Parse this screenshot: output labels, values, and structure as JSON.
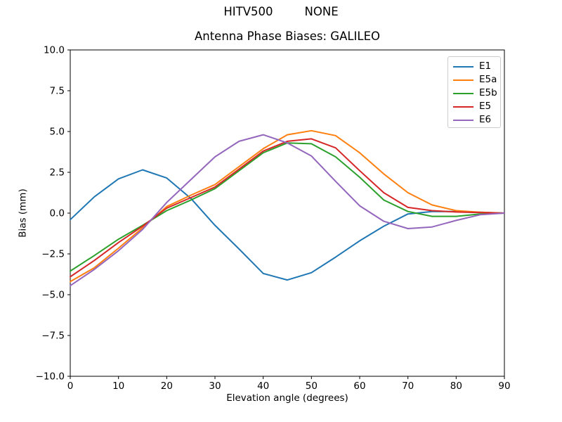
{
  "figure": {
    "suptitle_left": "HITV500",
    "suptitle_right": "NONE",
    "background_color": "#ffffff",
    "text_color": "#000000",
    "spine_color": "#000000",
    "legend_border_color": "#cccccc"
  },
  "chart_data": {
    "type": "line",
    "title": "Antenna Phase Biases: GALILEO",
    "xlabel": "Elevation angle (degrees)",
    "ylabel": "Bias (mm)",
    "xlim": [
      0,
      90
    ],
    "ylim": [
      -10,
      10
    ],
    "grid": false,
    "legend": {
      "position": "upper right",
      "entries": [
        "E1",
        "E5a",
        "E5b",
        "E5",
        "E6"
      ]
    },
    "xticks": {
      "values": [
        0,
        10,
        20,
        30,
        40,
        50,
        60,
        70,
        80,
        90
      ],
      "labels": [
        "0",
        "10",
        "20",
        "30",
        "40",
        "50",
        "60",
        "70",
        "80",
        "90"
      ]
    },
    "yticks": {
      "values": [
        -10,
        -7.5,
        -5,
        -2.5,
        0,
        2.5,
        5,
        7.5,
        10
      ],
      "labels": [
        "−10.0",
        "−7.5",
        "−5.0",
        "−2.5",
        "0.0",
        "2.5",
        "5.0",
        "7.5",
        "10.0"
      ]
    },
    "x": [
      0,
      5,
      10,
      15,
      20,
      25,
      30,
      35,
      40,
      45,
      50,
      55,
      60,
      65,
      70,
      75,
      80,
      85,
      90
    ],
    "series": [
      {
        "name": "E1",
        "color": "#1f77b4",
        "values": [
          -0.4,
          1.0,
          2.1,
          2.65,
          2.15,
          0.9,
          -0.75,
          -2.2,
          -3.7,
          -4.1,
          -3.65,
          -2.7,
          -1.7,
          -0.8,
          -0.05,
          0.1,
          0.1,
          0.05,
          0.0
        ]
      },
      {
        "name": "E5a",
        "color": "#ff7f0e",
        "values": [
          -4.2,
          -3.35,
          -2.15,
          -0.9,
          0.4,
          1.1,
          1.75,
          2.85,
          3.95,
          4.8,
          5.05,
          4.75,
          3.7,
          2.4,
          1.25,
          0.5,
          0.15,
          0.05,
          0.0
        ]
      },
      {
        "name": "E5b",
        "color": "#2ca02c",
        "values": [
          -3.55,
          -2.6,
          -1.6,
          -0.75,
          0.15,
          0.8,
          1.5,
          2.6,
          3.7,
          4.3,
          4.25,
          3.45,
          2.2,
          0.8,
          0.1,
          -0.2,
          -0.2,
          -0.05,
          0.0
        ]
      },
      {
        "name": "E5",
        "color": "#d62728",
        "values": [
          -3.9,
          -2.9,
          -1.8,
          -0.8,
          0.3,
          0.95,
          1.6,
          2.7,
          3.8,
          4.4,
          4.55,
          4.0,
          2.6,
          1.25,
          0.35,
          0.15,
          0.07,
          0.03,
          0.0
        ]
      },
      {
        "name": "E6",
        "color": "#9467bd",
        "values": [
          -4.45,
          -3.45,
          -2.3,
          -1.0,
          0.65,
          2.05,
          3.45,
          4.4,
          4.8,
          4.3,
          3.5,
          1.95,
          0.45,
          -0.5,
          -0.95,
          -0.85,
          -0.45,
          -0.1,
          0.0
        ]
      }
    ]
  }
}
